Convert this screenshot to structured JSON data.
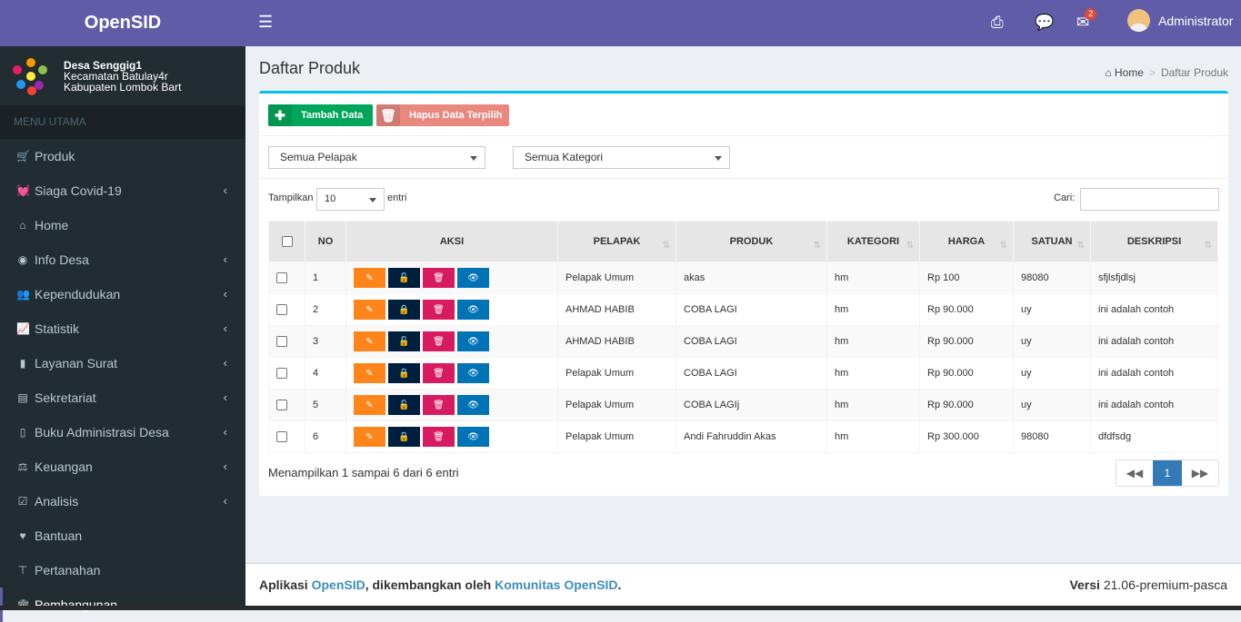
{
  "app": {
    "logo": "OpenSID"
  },
  "desa": {
    "name": "Desa Senggig1",
    "kecamatan": "Kecamatan Batulay4r",
    "kabupaten": "Kabupaten Lombok Bart"
  },
  "sidebar": {
    "header": "MENU UTAMA",
    "items": [
      {
        "label": "Produk",
        "icon": "cart-icon"
      },
      {
        "label": "Siaga Covid-19",
        "icon": "heartbeat-icon"
      },
      {
        "label": "Home",
        "icon": "home-icon"
      },
      {
        "label": "Info Desa",
        "icon": "dashboard-icon"
      },
      {
        "label": "Kependudukan",
        "icon": "users-icon"
      },
      {
        "label": "Statistik",
        "icon": "chart-icon"
      },
      {
        "label": "Layanan Surat",
        "icon": "book-icon"
      },
      {
        "label": "Sekretariat",
        "icon": "archive-icon"
      },
      {
        "label": "Buku Administrasi Desa",
        "icon": "copy-icon"
      },
      {
        "label": "Keuangan",
        "icon": "balance-icon"
      },
      {
        "label": "Analisis",
        "icon": "check-square-icon"
      },
      {
        "label": "Bantuan",
        "icon": "heart-icon"
      },
      {
        "label": "Pertanahan",
        "icon": "map-signs-icon"
      },
      {
        "label": "Pembangunan",
        "icon": "bank-icon"
      }
    ]
  },
  "topbar": {
    "user": "Administrator",
    "mail_badge": "2"
  },
  "page": {
    "title": "Daftar Produk",
    "crumb_home": "Home",
    "crumb_current": "Daftar Produk"
  },
  "toolbar": {
    "add_label": "Tambah Data",
    "delete_label": "Hapus Data Terpilih"
  },
  "filters": {
    "pelapak": "Semua Pelapak",
    "kategori": "Semua Kategori"
  },
  "table_controls": {
    "show_label": "Tampilkan",
    "show_value": "10",
    "entries_label": "entri",
    "search_label": "Cari:"
  },
  "table": {
    "headers": [
      "NO",
      "AKSI",
      "PELAPAK",
      "PRODUK",
      "KATEGORI",
      "HARGA",
      "SATUAN",
      "DESKRIPSI"
    ],
    "rows": [
      {
        "no": "1",
        "pelapak": "Pelapak Umum",
        "produk": "akas",
        "kategori": "hm",
        "harga": "Rp 100",
        "satuan": "98080",
        "deskripsi": "sfjlsfjdlsj",
        "locked": false
      },
      {
        "no": "2",
        "pelapak": "AHMAD HABIB",
        "produk": "COBA LAGI",
        "kategori": "hm",
        "harga": "Rp 90.000",
        "satuan": "uy",
        "deskripsi": "ini adalah contoh",
        "locked": true
      },
      {
        "no": "3",
        "pelapak": "AHMAD HABIB",
        "produk": "COBA LAGI",
        "kategori": "hm",
        "harga": "Rp 90.000",
        "satuan": "uy",
        "deskripsi": "ini adalah contoh",
        "locked": false
      },
      {
        "no": "4",
        "pelapak": "Pelapak Umum",
        "produk": "COBA LAGI",
        "kategori": "hm",
        "harga": "Rp 90.000",
        "satuan": "uy",
        "deskripsi": "ini adalah contoh",
        "locked": true
      },
      {
        "no": "5",
        "pelapak": "Pelapak Umum",
        "produk": "COBA LAGIj",
        "kategori": "hm",
        "harga": "Rp 90.000",
        "satuan": "uy",
        "deskripsi": "ini adalah contoh",
        "locked": false
      },
      {
        "no": "6",
        "pelapak": "Pelapak Umum",
        "produk": "Andi Fahruddin Akas",
        "kategori": "hm",
        "harga": "Rp 300.000",
        "satuan": "98080",
        "deskripsi": "dfdfsdg",
        "locked": true
      }
    ]
  },
  "pagination": {
    "info": "Menampilkan 1 sampai 6 dari 6 entri",
    "current": "1"
  },
  "footer": {
    "prefix": "Aplikasi ",
    "app_link": "OpenSID",
    "middle": ", dikembangkan oleh ",
    "community_link": "Komunitas OpenSID",
    "suffix": ".",
    "version_label": "Versi",
    "version": "21.06-premium-pasca"
  },
  "colors": {
    "brand": "#605ca8",
    "sidebar": "#222d32",
    "info_top": "#00c0ef",
    "add": "#00a65a",
    "delete": "#dd4b39",
    "edit": "#ff851b",
    "lock": "#001f3f",
    "trash": "#d81b60",
    "view": "#0073b7"
  }
}
